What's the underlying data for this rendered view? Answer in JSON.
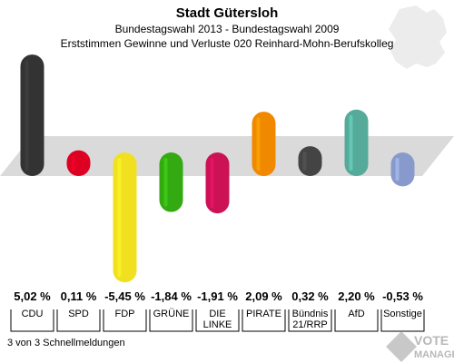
{
  "header": {
    "title": "Stadt Gütersloh",
    "subtitle1": "Bundestagswahl 2013 - Bundestagswahl 2009",
    "subtitle2": "Erststimmen Gewinne und Verluste 020 Reinhard-Mohn-Berufskolleg"
  },
  "footer": {
    "status": "3 von 3 Schnellmeldungen",
    "logo_line1": "VOTE",
    "logo_line2": "MANAGER"
  },
  "chart_data": {
    "type": "bar",
    "title": "Stadt Gütersloh",
    "categories": [
      [
        "CDU"
      ],
      [
        "SPD"
      ],
      [
        "FDP"
      ],
      [
        "GRÜNE"
      ],
      [
        "DIE",
        "LINKE"
      ],
      [
        "PIRATE"
      ],
      [
        "Bündnis",
        "21/RRP"
      ],
      [
        "AfD"
      ],
      [
        "Sonstige"
      ]
    ],
    "values": [
      5.02,
      0.11,
      -5.45,
      -1.84,
      -1.91,
      2.09,
      0.32,
      2.2,
      -0.53
    ],
    "value_labels": [
      "5,02 %",
      "0,11 %",
      "-5,45 %",
      "-1,84 %",
      "-1,91 %",
      "2,09 %",
      "0,32 %",
      "2,20 %",
      "-0,53 %"
    ],
    "colors": [
      "#333333",
      "#dd0022",
      "#f0e020",
      "#33aa11",
      "#cc1155",
      "#f08800",
      "#444444",
      "#55aa99",
      "#8899cc"
    ],
    "baseline": 0
  }
}
